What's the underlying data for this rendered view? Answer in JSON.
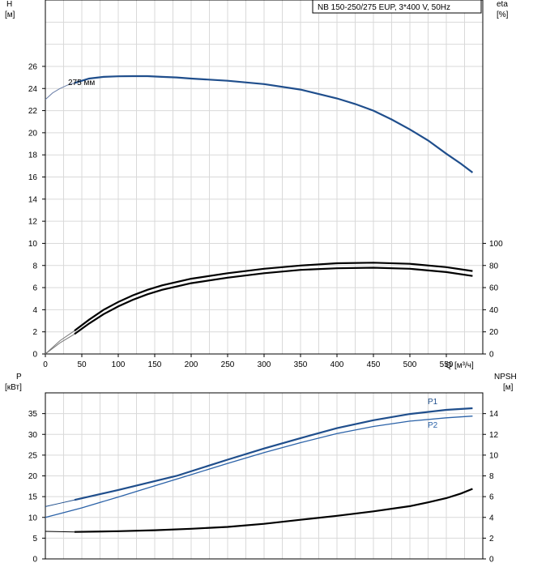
{
  "chart_data": [
    {
      "type": "line",
      "panel": "head",
      "title": "NB 150-250/275 EUP, 3*400 V, 50Hz",
      "ylabel": "H",
      "yunit": "[м]",
      "ylabel_right": "eta",
      "yunit_right": "[%]",
      "xlabel": "Q",
      "xunit": "[м³/ч]",
      "xlim": [
        0,
        600
      ],
      "ylim": [
        0,
        32
      ],
      "ylim_right": [
        0,
        100
      ],
      "y_ticks": [
        "0",
        "2",
        "4",
        "6",
        "8",
        "10",
        "12",
        "14",
        "16",
        "18",
        "20",
        "22",
        "24",
        "26"
      ],
      "y_right_ticks": [
        "0",
        "20",
        "40",
        "60",
        "80",
        "100"
      ],
      "x_ticks": [
        "0",
        "50",
        "100",
        "150",
        "200",
        "250",
        "300",
        "350",
        "400",
        "450",
        "500",
        "550"
      ],
      "grid": true,
      "annotation": "275 мм",
      "series": [
        {
          "role": "head-extension",
          "axis": "left",
          "color": "#6b7fa8",
          "x": [
            0,
            10,
            20,
            30,
            40
          ],
          "y": [
            23.0,
            23.6,
            24.0,
            24.3,
            24.5
          ]
        },
        {
          "role": "head",
          "axis": "left",
          "color": "#1f4e8c",
          "x": [
            40,
            60,
            80,
            100,
            120,
            140,
            160,
            180,
            200,
            250,
            300,
            350,
            400,
            425,
            450,
            475,
            500,
            525,
            550,
            570,
            586
          ],
          "y": [
            24.5,
            24.9,
            25.05,
            25.1,
            25.12,
            25.12,
            25.05,
            25.0,
            24.9,
            24.7,
            24.4,
            23.9,
            23.1,
            22.6,
            22.0,
            21.2,
            20.3,
            19.3,
            18.1,
            17.2,
            16.4
          ]
        },
        {
          "role": "eta-upper-extension",
          "axis": "right",
          "color": "#777777",
          "x": [
            0,
            20,
            40
          ],
          "y": [
            0,
            12,
            21
          ]
        },
        {
          "role": "eta-lower-extension",
          "axis": "right",
          "color": "#777777",
          "x": [
            0,
            20,
            40
          ],
          "y": [
            0,
            10,
            18
          ]
        },
        {
          "role": "eta-upper",
          "axis": "right",
          "color": "#000000",
          "x": [
            40,
            60,
            80,
            100,
            120,
            140,
            160,
            180,
            200,
            250,
            300,
            350,
            400,
            450,
            500,
            550,
            586
          ],
          "y": [
            21,
            31,
            40,
            47,
            53,
            58,
            62,
            65,
            68,
            73,
            77,
            80,
            82,
            82.5,
            81.5,
            78.5,
            75
          ]
        },
        {
          "role": "eta-lower",
          "axis": "right",
          "color": "#000000",
          "x": [
            40,
            60,
            80,
            100,
            120,
            140,
            160,
            180,
            200,
            250,
            300,
            350,
            400,
            450,
            500,
            550,
            586
          ],
          "y": [
            18,
            27.5,
            36,
            43,
            49,
            54,
            58,
            61,
            64,
            69,
            73,
            76,
            77.5,
            78,
            77,
            74,
            70.5
          ]
        }
      ]
    },
    {
      "type": "line",
      "panel": "power",
      "ylabel": "P",
      "yunit": "[кВт]",
      "ylabel_right": "NPSH",
      "yunit_right": "[м]",
      "xlim": [
        0,
        600
      ],
      "ylim": [
        0,
        40
      ],
      "ylim_right": [
        0,
        16
      ],
      "y_ticks": [
        "0",
        "5",
        "10",
        "15",
        "20",
        "25",
        "30",
        "35"
      ],
      "y_right_ticks": [
        "0",
        "2",
        "4",
        "6",
        "8",
        "10",
        "12",
        "14"
      ],
      "grid": true,
      "series": [
        {
          "name": "P1",
          "axis": "left",
          "color": "#1f4e8c",
          "x": [
            40,
            100,
            180,
            250,
            300,
            350,
            400,
            450,
            500,
            550,
            586
          ],
          "y": [
            14.2,
            16.6,
            20.0,
            23.9,
            26.6,
            29.1,
            31.5,
            33.4,
            34.9,
            35.9,
            36.3
          ]
        },
        {
          "role": "P1-extension",
          "axis": "left",
          "color": "#1f4e8c",
          "x": [
            0,
            20,
            40
          ],
          "y": [
            12.6,
            13.4,
            14.2
          ]
        },
        {
          "name": "P2",
          "axis": "left",
          "color": "#2b62a8",
          "x": [
            0,
            50,
            100,
            150,
            200,
            250,
            300,
            350,
            400,
            450,
            500,
            550,
            586
          ],
          "y": [
            10.0,
            12.3,
            14.9,
            17.6,
            20.3,
            23.0,
            25.6,
            28.0,
            30.2,
            31.9,
            33.2,
            34.0,
            34.4
          ]
        },
        {
          "role": "npsh",
          "axis": "right",
          "color": "#000000",
          "x": [
            40,
            100,
            150,
            200,
            250,
            300,
            350,
            400,
            450,
            500,
            525,
            550,
            570,
            586
          ],
          "y": [
            2.6,
            2.67,
            2.76,
            2.9,
            3.08,
            3.38,
            3.77,
            4.15,
            4.58,
            5.08,
            5.45,
            5.85,
            6.3,
            6.75
          ]
        },
        {
          "role": "npsh-extension",
          "axis": "right",
          "color": "#000000",
          "x": [
            0,
            20,
            40
          ],
          "y": [
            2.65,
            2.62,
            2.6
          ]
        }
      ]
    }
  ]
}
